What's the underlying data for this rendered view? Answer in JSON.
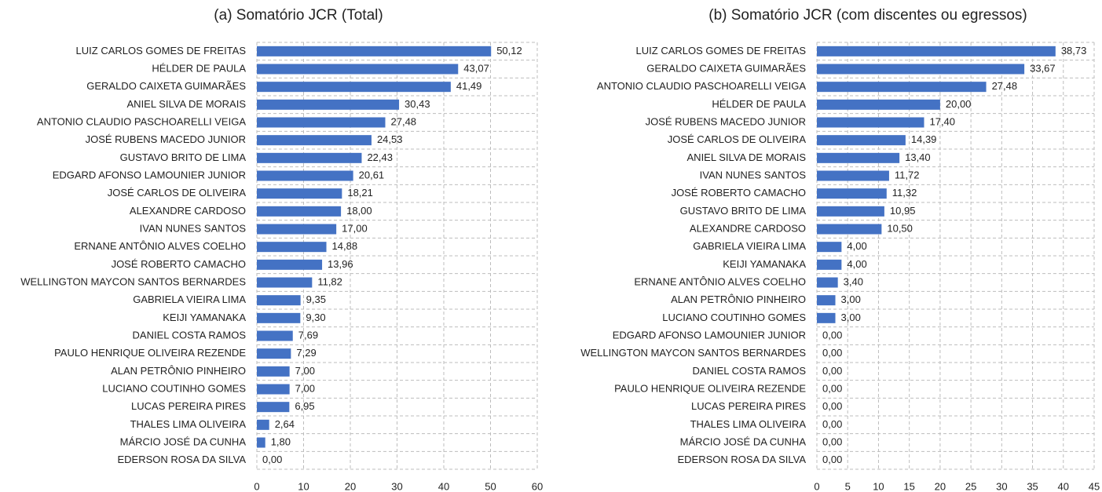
{
  "chart_data": [
    {
      "type": "bar",
      "orientation": "horizontal",
      "title": "(a) Somatório JCR (Total)",
      "categories": [
        "LUIZ CARLOS GOMES DE FREITAS",
        "HÉLDER DE PAULA",
        "GERALDO CAIXETA GUIMARÃES",
        "ANIEL SILVA DE MORAIS",
        "ANTONIO CLAUDIO PASCHOARELLI VEIGA",
        "JOSÉ RUBENS MACEDO JUNIOR",
        "GUSTAVO BRITO DE LIMA",
        "EDGARD AFONSO LAMOUNIER JUNIOR",
        "JOSÉ CARLOS DE OLIVEIRA",
        "ALEXANDRE CARDOSO",
        "IVAN NUNES SANTOS",
        "ERNANE ANTÔNIO ALVES COELHO",
        "JOSÉ ROBERTO CAMACHO",
        "WELLINGTON MAYCON SANTOS BERNARDES",
        "GABRIELA VIEIRA LIMA",
        "KEIJI YAMANAKA",
        "DANIEL COSTA RAMOS",
        "PAULO HENRIQUE OLIVEIRA REZENDE",
        "ALAN PETRÔNIO PINHEIRO",
        "LUCIANO COUTINHO GOMES",
        "LUCAS PEREIRA PIRES",
        "THALES LIMA OLIVEIRA",
        "MÁRCIO JOSÉ DA CUNHA",
        "EDERSON ROSA DA SILVA"
      ],
      "values": [
        50.12,
        43.07,
        41.49,
        30.43,
        27.48,
        24.53,
        22.43,
        20.61,
        18.21,
        18.0,
        17.0,
        14.88,
        13.96,
        11.82,
        9.35,
        9.3,
        7.69,
        7.29,
        7.0,
        7.0,
        6.95,
        2.64,
        1.8,
        0.0
      ],
      "value_labels": [
        "50,12",
        "43,07",
        "41,49",
        "30,43",
        "27,48",
        "24,53",
        "22,43",
        "20,61",
        "18,21",
        "18,00",
        "17,00",
        "14,88",
        "13,96",
        "11,82",
        "9,35",
        "9,30",
        "7,69",
        "7,29",
        "7,00",
        "7,00",
        "6,95",
        "2,64",
        "1,80",
        "0,00"
      ],
      "color": "#4472c4",
      "xlim": [
        0,
        60
      ],
      "xticks": [
        0,
        10,
        20,
        30,
        40,
        50,
        60
      ],
      "grid": true
    },
    {
      "type": "bar",
      "orientation": "horizontal",
      "title": "(b) Somatório JCR (com discentes ou egressos)",
      "categories": [
        "LUIZ CARLOS GOMES DE FREITAS",
        "GERALDO CAIXETA GUIMARÃES",
        "ANTONIO CLAUDIO PASCHOARELLI VEIGA",
        "HÉLDER DE PAULA",
        "JOSÉ RUBENS MACEDO JUNIOR",
        "JOSÉ CARLOS DE OLIVEIRA",
        "ANIEL SILVA DE MORAIS",
        "IVAN NUNES SANTOS",
        "JOSÉ ROBERTO CAMACHO",
        "GUSTAVO BRITO DE LIMA",
        "ALEXANDRE CARDOSO",
        "GABRIELA VIEIRA LIMA",
        "KEIJI YAMANAKA",
        "ERNANE ANTÔNIO ALVES COELHO",
        "ALAN PETRÔNIO PINHEIRO",
        "LUCIANO COUTINHO GOMES",
        "EDGARD AFONSO LAMOUNIER JUNIOR",
        "WELLINGTON MAYCON SANTOS BERNARDES",
        "DANIEL COSTA RAMOS",
        "PAULO HENRIQUE OLIVEIRA REZENDE",
        "LUCAS PEREIRA PIRES",
        "THALES LIMA OLIVEIRA",
        "MÁRCIO JOSÉ DA CUNHA",
        "EDERSON ROSA DA SILVA"
      ],
      "values": [
        38.73,
        33.67,
        27.48,
        20.0,
        17.4,
        14.39,
        13.4,
        11.72,
        11.32,
        10.95,
        10.5,
        4.0,
        4.0,
        3.4,
        3.0,
        3.0,
        0.0,
        0.0,
        0.0,
        0.0,
        0.0,
        0.0,
        0.0,
        0.0
      ],
      "value_labels": [
        "38,73",
        "33,67",
        "27,48",
        "20,00",
        "17,40",
        "14,39",
        "13,40",
        "11,72",
        "11,32",
        "10,95",
        "10,50",
        "4,00",
        "4,00",
        "3,40",
        "3,00",
        "3,00",
        "0,00",
        "0,00",
        "0,00",
        "0,00",
        "0,00",
        "0,00",
        "0,00",
        "0,00"
      ],
      "color": "#4472c4",
      "xlim": [
        0,
        45
      ],
      "xticks": [
        0,
        5,
        10,
        15,
        20,
        25,
        30,
        35,
        40,
        45
      ],
      "grid": true
    }
  ]
}
